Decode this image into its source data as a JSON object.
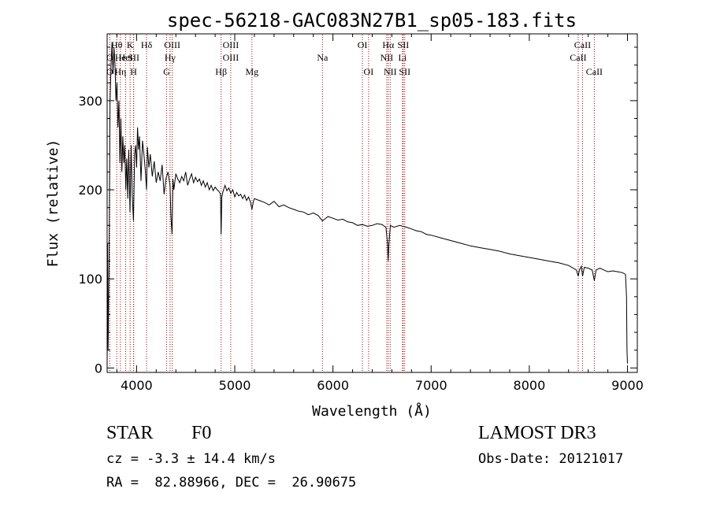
{
  "chart_data": {
    "type": "line",
    "title": "spec-56218-GAC083N27B1_sp05-183.fits",
    "xlabel": "Wavelength (Å)",
    "ylabel": "Flux (relative)",
    "xlim": [
      3700,
      9100
    ],
    "ylim": [
      -5,
      375
    ],
    "xticks": [
      4000,
      5000,
      6000,
      7000,
      8000,
      9000
    ],
    "yticks": [
      0,
      100,
      200,
      300
    ],
    "grid": false,
    "legend": "none",
    "line_color": "#000000",
    "marker_color": "#aa0000",
    "series": [
      {
        "x": [
          3700,
          3705,
          3710,
          3720,
          3730,
          3740,
          3750,
          3760,
          3770,
          3780,
          3790,
          3800,
          3810,
          3820,
          3830,
          3840,
          3850,
          3860,
          3870,
          3880,
          3890,
          3900,
          3910,
          3920,
          3933,
          3945,
          3955,
          3968,
          3980,
          3990,
          4000,
          4010,
          4020,
          4030,
          4045,
          4060,
          4075,
          4090,
          4101,
          4110,
          4125,
          4140,
          4160,
          4180,
          4200,
          4220,
          4240,
          4260,
          4280,
          4300,
          4320,
          4340,
          4350,
          4361,
          4370,
          4380,
          4400,
          4420,
          4440,
          4460,
          4480,
          4500,
          4520,
          4540,
          4560,
          4580,
          4600,
          4620,
          4640,
          4660,
          4680,
          4700,
          4720,
          4740,
          4760,
          4780,
          4800,
          4820,
          4840,
          4855,
          4861,
          4868,
          4880,
          4900,
          4920,
          4940,
          4960,
          4980,
          5000,
          5020,
          5040,
          5060,
          5080,
          5100,
          5120,
          5140,
          5160,
          5175,
          5190,
          5200,
          5250,
          5300,
          5350,
          5400,
          5450,
          5500,
          5550,
          5600,
          5650,
          5700,
          5750,
          5800,
          5850,
          5893,
          5950,
          6000,
          6050,
          6100,
          6150,
          6200,
          6250,
          6300,
          6350,
          6400,
          6450,
          6500,
          6540,
          6555,
          6563,
          6570,
          6585,
          6620,
          6680,
          6750,
          6800,
          6850,
          6900,
          6950,
          7000,
          7100,
          7200,
          7300,
          7400,
          7500,
          7600,
          7700,
          7800,
          7900,
          8000,
          8100,
          8200,
          8300,
          8400,
          8480,
          8498,
          8510,
          8530,
          8542,
          8560,
          8600,
          8640,
          8662,
          8680,
          8720,
          8760,
          8800,
          8850,
          8900,
          8950,
          8980,
          8990,
          8995,
          9000
        ],
        "y": [
          0,
          140,
          20,
          120,
          300,
          340,
          365,
          330,
          360,
          340,
          300,
          320,
          270,
          300,
          230,
          280,
          220,
          260,
          230,
          250,
          200,
          235,
          190,
          245,
          175,
          250,
          195,
          165,
          240,
          250,
          225,
          270,
          245,
          260,
          210,
          255,
          240,
          220,
          200,
          248,
          225,
          240,
          215,
          232,
          208,
          220,
          210,
          228,
          195,
          213,
          220,
          205,
          170,
          150,
          212,
          200,
          218,
          212,
          208,
          215,
          210,
          220,
          205,
          212,
          218,
          208,
          214,
          209,
          212,
          205,
          210,
          203,
          208,
          200,
          205,
          199,
          203,
          200,
          198,
          195,
          150,
          192,
          198,
          205,
          199,
          202,
          196,
          200,
          192,
          197,
          193,
          195,
          190,
          194,
          188,
          192,
          186,
          178,
          187,
          190,
          188,
          186,
          183,
          187,
          181,
          183,
          180,
          178,
          176,
          175,
          172,
          174,
          171,
          165,
          170,
          168,
          166,
          167,
          164,
          163,
          160,
          161,
          159,
          160,
          162,
          161,
          158,
          140,
          120,
          140,
          160,
          158,
          160,
          158,
          156,
          154,
          153,
          150,
          149,
          146,
          143,
          140,
          137,
          135,
          133,
          131,
          128,
          126,
          124,
          122,
          120,
          118,
          115,
          110,
          103,
          110,
          114,
          103,
          113,
          112,
          110,
          98,
          110,
          112,
          110,
          108,
          109,
          108,
          107,
          105,
          80,
          20,
          5
        ]
      }
    ],
    "line_markers": [
      {
        "name": "O",
        "x": 3727,
        "row": 2
      },
      {
        "name": "O",
        "x": 3727,
        "row": 3
      },
      {
        "name": "Hθ",
        "x": 3798,
        "row": 1
      },
      {
        "name": "He",
        "x": 3835,
        "row": 2
      },
      {
        "name": "Hη",
        "x": 3835,
        "row": 3
      },
      {
        "name": "K",
        "x": 3934,
        "row": 1
      },
      {
        "name": "HeI",
        "x": 3889,
        "row": 2
      },
      {
        "name": "SII",
        "x": 3970,
        "row": 2
      },
      {
        "name": "H",
        "x": 3969,
        "row": 3
      },
      {
        "name": "Hδ",
        "x": 4102,
        "row": 1
      },
      {
        "name": "OIII",
        "x": 4363,
        "row": 1
      },
      {
        "name": "Hγ",
        "x": 4341,
        "row": 2
      },
      {
        "name": "G",
        "x": 4305,
        "row": 3
      },
      {
        "name": "OIII",
        "x": 4959,
        "row": 1
      },
      {
        "name": "OIII",
        "x": 4959,
        "row": 2
      },
      {
        "name": "Hβ",
        "x": 4861,
        "row": 3
      },
      {
        "name": "Mg",
        "x": 5175,
        "row": 3
      },
      {
        "name": "Na",
        "x": 5893,
        "row": 2
      },
      {
        "name": "OI",
        "x": 6300,
        "row": 1
      },
      {
        "name": "OI",
        "x": 6363,
        "row": 3
      },
      {
        "name": "Hα",
        "x": 6563,
        "row": 1
      },
      {
        "name": "NII",
        "x": 6548,
        "row": 2
      },
      {
        "name": "NII",
        "x": 6583,
        "row": 3
      },
      {
        "name": "SII",
        "x": 6716,
        "row": 1
      },
      {
        "name": "Li",
        "x": 6708,
        "row": 2
      },
      {
        "name": "SII",
        "x": 6731,
        "row": 3
      },
      {
        "name": "CaII",
        "x": 8542,
        "row": 1
      },
      {
        "name": "CaII",
        "x": 8498,
        "row": 2
      },
      {
        "name": "CaII",
        "x": 8662,
        "row": 3
      }
    ]
  },
  "info": {
    "object_class": "STAR",
    "subclass": "F0",
    "survey": "LAMOST DR3",
    "velocity": "cz = -3.3 ± 14.4 km/s",
    "obs_date": "Obs-Date: 20121017",
    "coords": "RA =  82.88966, DEC =  26.90675"
  }
}
